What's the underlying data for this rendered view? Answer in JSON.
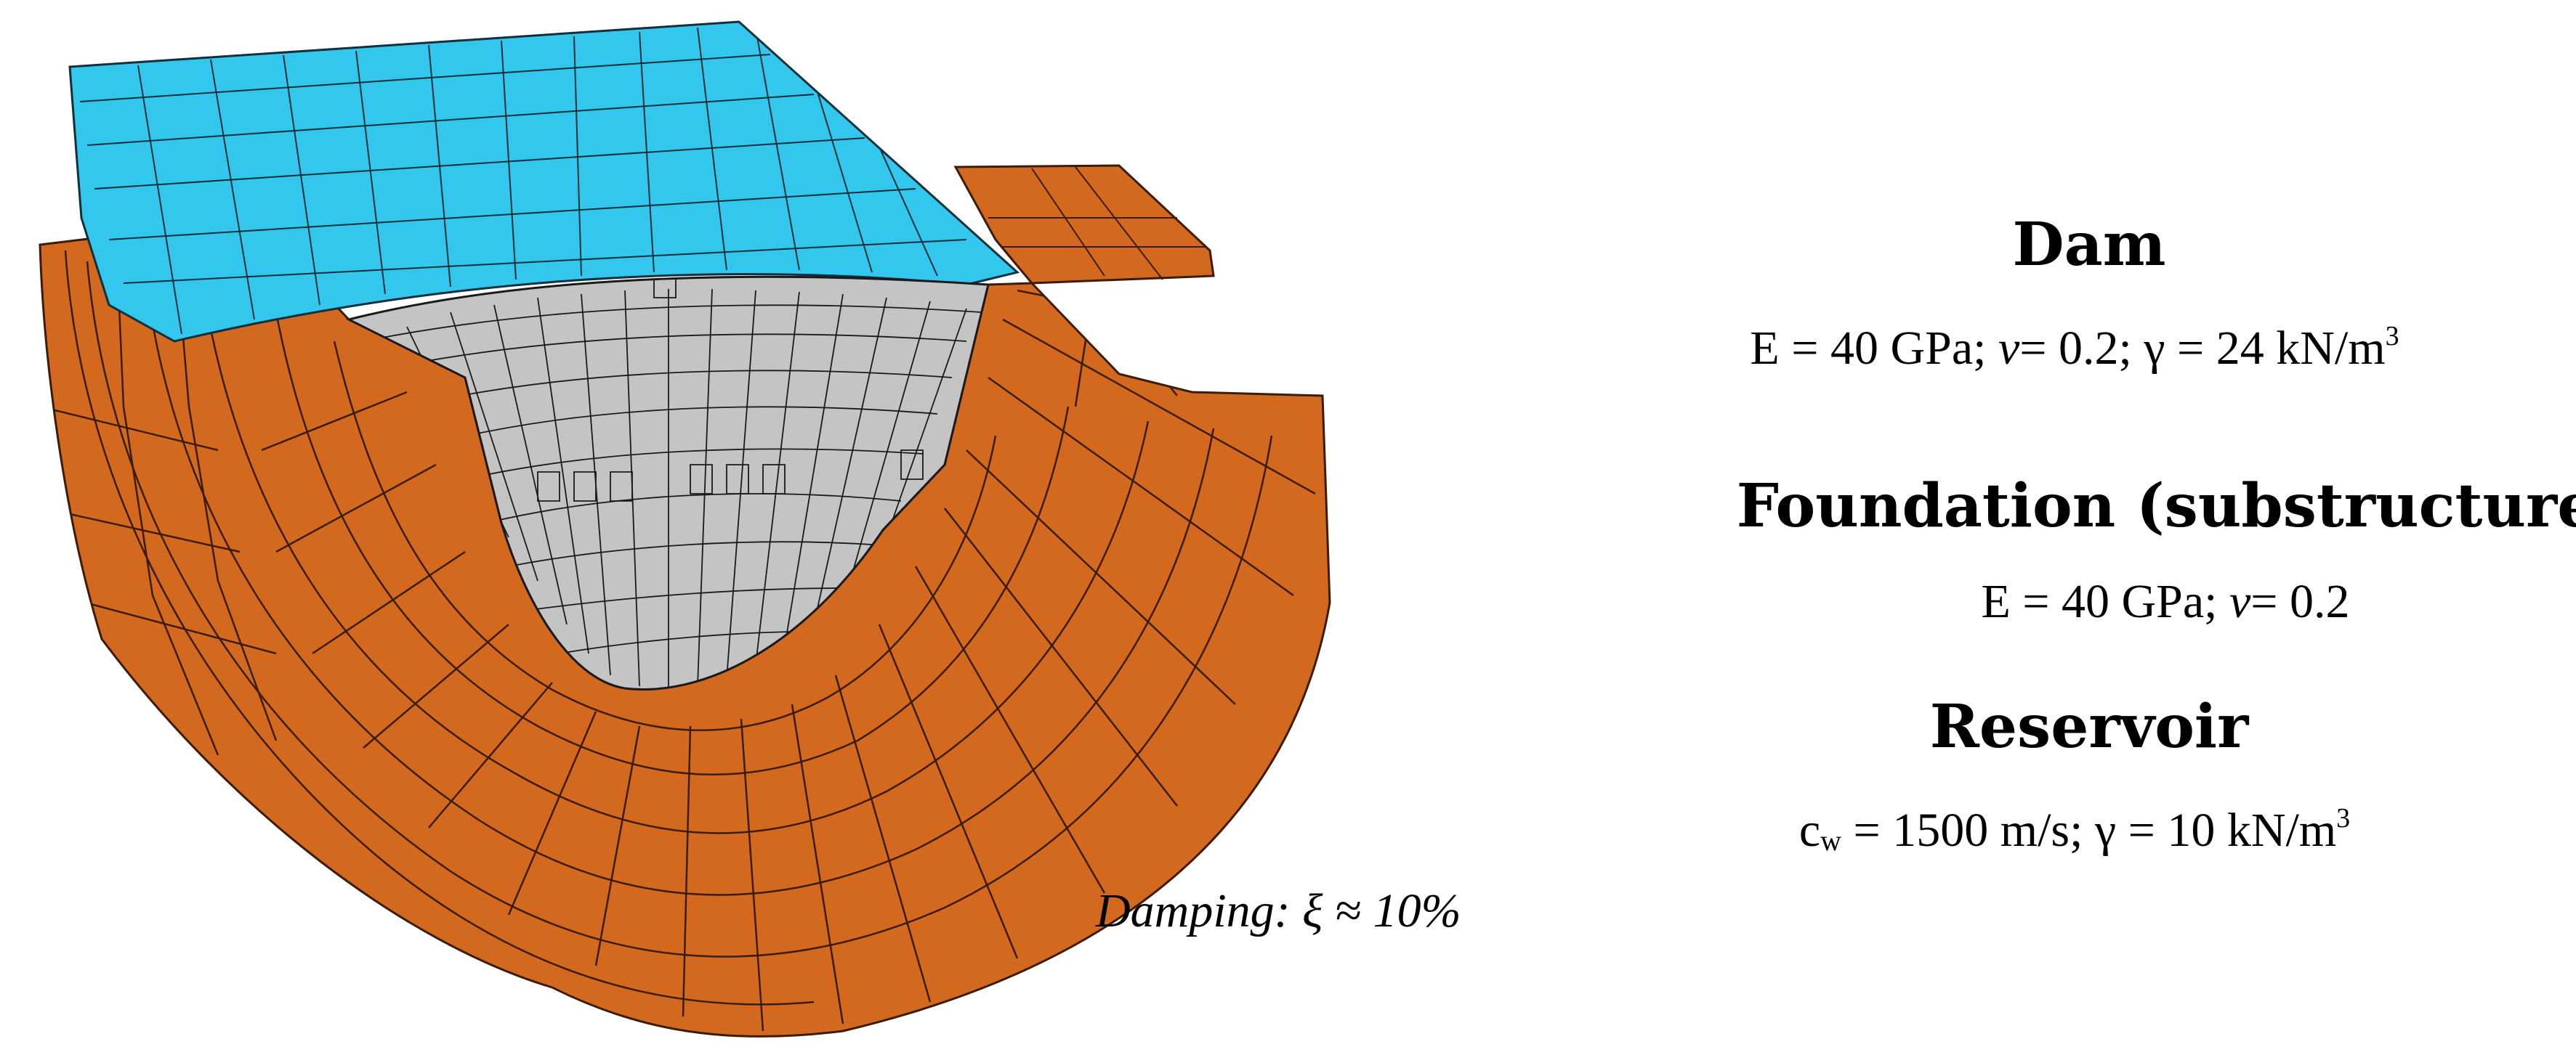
{
  "dam": {
    "heading": "Dam",
    "E": "E = 40 GPa;",
    "nu_symbol": "ν",
    "nu_value": "= 0.2;",
    "gamma_symbol": "γ",
    "gamma_value": "= 24 kN/m",
    "gamma_exp": "3"
  },
  "foundation": {
    "heading": "Foundation (substructure)",
    "E": "E = 40 GPa;",
    "nu_symbol": "ν",
    "nu_value": "= 0.2"
  },
  "reservoir": {
    "heading": "Reservoir",
    "c_symbol": "c",
    "c_sub": "w",
    "c_value": "= 1500 m/s;",
    "gamma_symbol": "γ",
    "gamma_value": "= 10 kN/m",
    "gamma_exp": "3"
  },
  "damping": "Damping: ξ ≈ 10%",
  "colors": {
    "dam_crest": "#33c7ee",
    "foundation": "#d2691f",
    "reservoir": "#c4c4c4",
    "mesh_lines": "#3a1c08"
  }
}
